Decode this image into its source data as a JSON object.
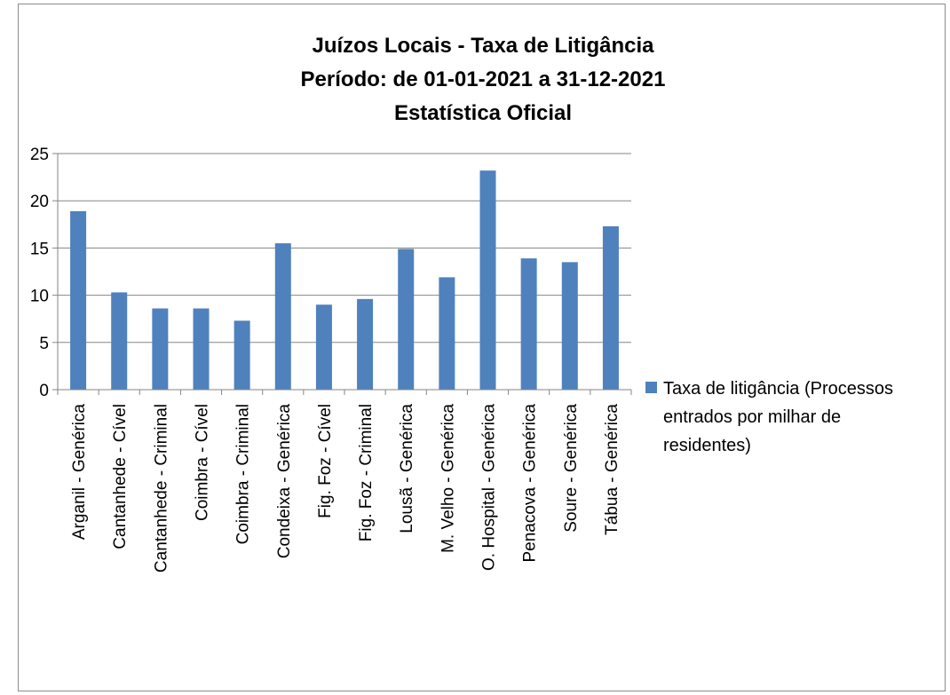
{
  "chart_data": {
    "type": "bar",
    "title_lines": [
      "Juízos Locais - Taxa de Litigância",
      "Período: de 01-01-2021 a  31-12-2021",
      "Estatística Oficial"
    ],
    "categories": [
      "Arganil - Genérica",
      "Cantanhede - Cível",
      "Cantanhede - Criminal",
      "Coimbra - Cível",
      "Coimbra - Criminal",
      "Condeixa - Genérica",
      "Fig. Foz - Cível",
      "Fig. Foz - Criminal",
      "Lousã - Genérica",
      "M. Velho - Genérica",
      "O. Hospital - Genérica",
      "Penacova - Genérica",
      "Soure - Genérica",
      "Tábua - Genérica"
    ],
    "series": [
      {
        "name": "Taxa de litigância (Processos entrados por milhar de residentes)",
        "legend_lines": [
          "Taxa de litigância (Processos",
          "entrados por milhar de",
          "residentes)"
        ],
        "color": "#4f81bd",
        "values": [
          18.9,
          10.3,
          8.6,
          8.6,
          7.3,
          15.5,
          9.0,
          9.6,
          14.9,
          11.9,
          23.2,
          13.9,
          13.5,
          17.3
        ]
      }
    ],
    "yticks": [
      "0",
      "5",
      "10",
      "15",
      "20",
      "25"
    ],
    "ylim": [
      0,
      25
    ],
    "grid": true,
    "legend_position": "right"
  }
}
